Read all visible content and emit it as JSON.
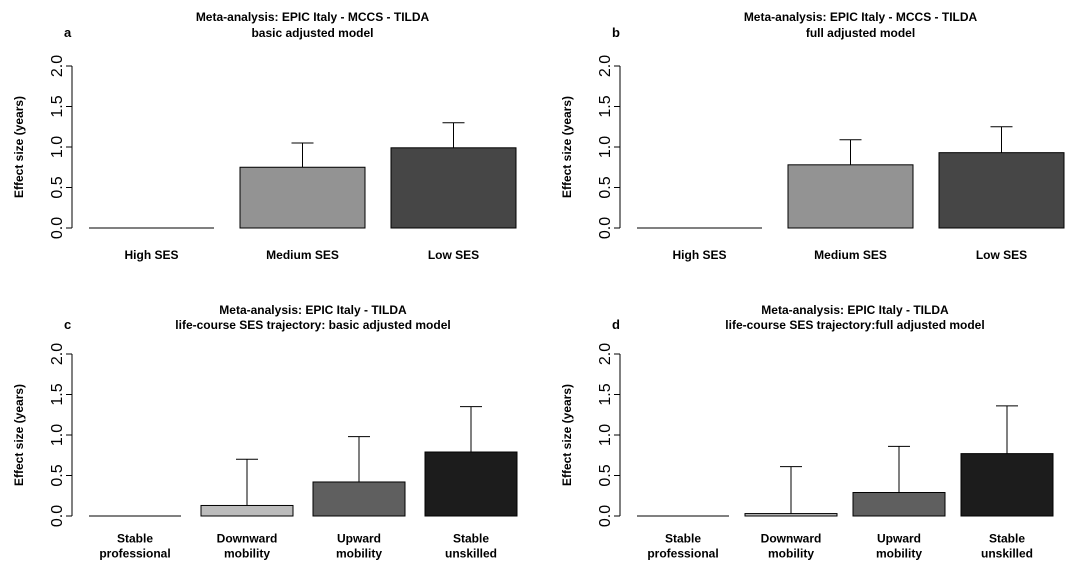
{
  "chart_data": [
    {
      "panel": "a",
      "type": "bar",
      "title": "Meta-analysis: EPIC Italy - MCCS - TILDA",
      "subtitle": "basic adjusted model",
      "ylabel": "Effect size (years)",
      "ylim": [
        0,
        2.0
      ],
      "yticks": [
        "0.0",
        "0.5",
        "1.0",
        "1.5",
        "2.0"
      ],
      "categories": [
        [
          "High SES"
        ],
        [
          "Medium SES"
        ],
        [
          "Low SES"
        ]
      ],
      "values": [
        0,
        0.75,
        0.99
      ],
      "upper": [
        null,
        1.05,
        1.3
      ],
      "colors": [
        "#ffffff",
        "#939393",
        "#464646"
      ]
    },
    {
      "panel": "b",
      "type": "bar",
      "title": "Meta-analysis: EPIC Italy - MCCS - TILDA",
      "subtitle": "full adjusted model",
      "ylabel": "Effect size (years)",
      "ylim": [
        0,
        2.0
      ],
      "yticks": [
        "0.0",
        "0.5",
        "1.0",
        "1.5",
        "2.0"
      ],
      "categories": [
        [
          "High SES"
        ],
        [
          "Medium SES"
        ],
        [
          "Low SES"
        ]
      ],
      "values": [
        0,
        0.78,
        0.93
      ],
      "upper": [
        null,
        1.09,
        1.25
      ],
      "colors": [
        "#ffffff",
        "#939393",
        "#464646"
      ]
    },
    {
      "panel": "c",
      "type": "bar",
      "title": "Meta-analysis: EPIC Italy - TILDA",
      "subtitle": "life-course SES trajectory: basic adjusted model",
      "ylabel": "Effect size (years)",
      "ylim": [
        0,
        2.0
      ],
      "yticks": [
        "0.0",
        "0.5",
        "1.0",
        "1.5",
        "2.0"
      ],
      "categories": [
        [
          "Stable",
          "professional"
        ],
        [
          "Downward",
          "mobility"
        ],
        [
          "Upward",
          "mobility"
        ],
        [
          "Stable",
          "unskilled"
        ]
      ],
      "values": [
        0,
        0.13,
        0.42,
        0.79
      ],
      "upper": [
        null,
        0.7,
        0.98,
        1.35
      ],
      "colors": [
        "#ffffff",
        "#bcbcbc",
        "#5f5f5f",
        "#1c1c1c"
      ]
    },
    {
      "panel": "d",
      "type": "bar",
      "title": "Meta-analysis: EPIC Italy - TILDA",
      "subtitle": "life-course SES trajectory:full adjusted model",
      "ylabel": "Effect size (years)",
      "ylim": [
        0,
        2.0
      ],
      "yticks": [
        "0.0",
        "0.5",
        "1.0",
        "1.5",
        "2.0"
      ],
      "categories": [
        [
          "Stable",
          "professional"
        ],
        [
          "Downward",
          "mobility"
        ],
        [
          "Upward",
          "mobility"
        ],
        [
          "Stable",
          "unskilled"
        ]
      ],
      "values": [
        0,
        0.03,
        0.29,
        0.77
      ],
      "upper": [
        null,
        0.61,
        0.86,
        1.36
      ],
      "colors": [
        "#ffffff",
        "#bcbcbc",
        "#5f5f5f",
        "#1c1c1c"
      ]
    }
  ]
}
